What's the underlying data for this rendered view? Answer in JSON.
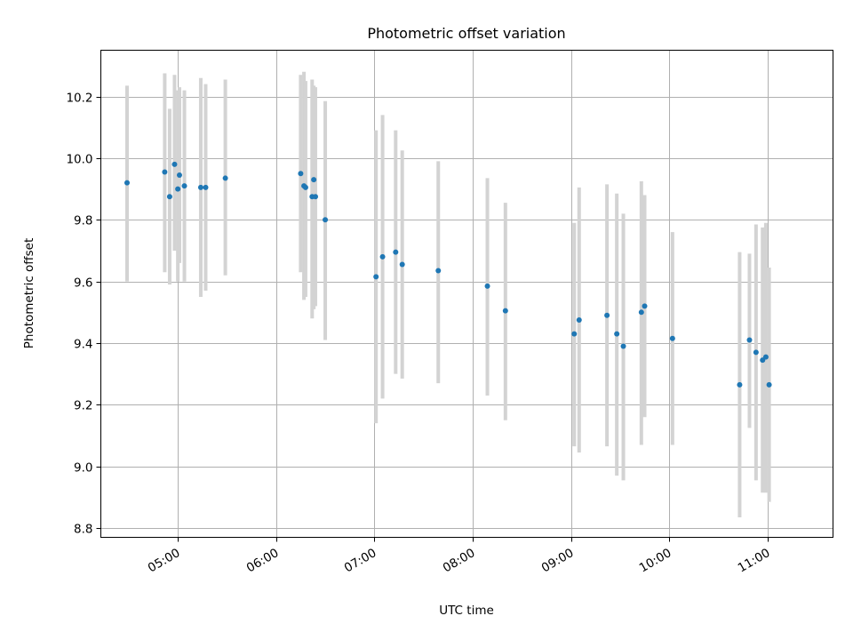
{
  "chart_data": {
    "type": "scatter",
    "title": "Photometric offset variation",
    "xlabel": "UTC time",
    "ylabel": "Photometric offset",
    "xlim": [
      "04:13",
      "11:40"
    ],
    "ylim": [
      8.77,
      10.35
    ],
    "x_ticks": [
      "05:00",
      "06:00",
      "07:00",
      "08:00",
      "09:00",
      "10:00",
      "11:00"
    ],
    "y_ticks": [
      8.8,
      9.0,
      9.2,
      9.4,
      9.6,
      9.8,
      10.0,
      10.2
    ],
    "grid": true,
    "colors": {
      "points": "#1f77b4",
      "errorbars": "#d3d3d3",
      "grid": "#b0b0b0"
    },
    "series": [
      {
        "points": [
          {
            "t": "04:29",
            "y": 9.92,
            "ylo": 9.6,
            "yhi": 10.235
          },
          {
            "t": "04:52",
            "y": 9.955,
            "ylo": 9.63,
            "yhi": 10.275
          },
          {
            "t": "04:55",
            "y": 9.875,
            "ylo": 9.59,
            "yhi": 10.16
          },
          {
            "t": "04:58",
            "y": 9.98,
            "ylo": 9.7,
            "yhi": 10.27
          },
          {
            "t": "05:00",
            "y": 9.9,
            "ylo": 9.6,
            "yhi": 10.22
          },
          {
            "t": "05:01",
            "y": 9.945,
            "ylo": 9.66,
            "yhi": 10.23
          },
          {
            "t": "05:04",
            "y": 9.91,
            "ylo": 9.6,
            "yhi": 10.22
          },
          {
            "t": "05:14",
            "y": 9.905,
            "ylo": 9.55,
            "yhi": 10.26
          },
          {
            "t": "05:17",
            "y": 9.905,
            "ylo": 9.57,
            "yhi": 10.24
          },
          {
            "t": "05:29",
            "y": 9.935,
            "ylo": 9.62,
            "yhi": 10.255
          },
          {
            "t": "06:15",
            "y": 9.95,
            "ylo": 9.63,
            "yhi": 10.27
          },
          {
            "t": "06:17",
            "y": 9.91,
            "ylo": 9.54,
            "yhi": 10.28
          },
          {
            "t": "06:18",
            "y": 9.905,
            "ylo": 9.55,
            "yhi": 10.25
          },
          {
            "t": "06:22",
            "y": 9.875,
            "ylo": 9.48,
            "yhi": 10.255
          },
          {
            "t": "06:23",
            "y": 9.93,
            "ylo": 9.51,
            "yhi": 10.235
          },
          {
            "t": "06:24",
            "y": 9.875,
            "ylo": 9.52,
            "yhi": 10.23
          },
          {
            "t": "06:30",
            "y": 9.8,
            "ylo": 9.41,
            "yhi": 10.185
          },
          {
            "t": "07:01",
            "y": 9.615,
            "ylo": 9.14,
            "yhi": 10.09
          },
          {
            "t": "07:05",
            "y": 9.68,
            "ylo": 9.22,
            "yhi": 10.14
          },
          {
            "t": "07:13",
            "y": 9.695,
            "ylo": 9.3,
            "yhi": 10.09
          },
          {
            "t": "07:17",
            "y": 9.655,
            "ylo": 9.285,
            "yhi": 10.025
          },
          {
            "t": "07:39",
            "y": 9.635,
            "ylo": 9.27,
            "yhi": 9.99
          },
          {
            "t": "08:09",
            "y": 9.585,
            "ylo": 9.23,
            "yhi": 9.935
          },
          {
            "t": "08:20",
            "y": 9.505,
            "ylo": 9.15,
            "yhi": 9.855
          },
          {
            "t": "09:02",
            "y": 9.43,
            "ylo": 9.065,
            "yhi": 9.79
          },
          {
            "t": "09:05",
            "y": 9.475,
            "ylo": 9.045,
            "yhi": 9.905
          },
          {
            "t": "09:22",
            "y": 9.49,
            "ylo": 9.065,
            "yhi": 9.915
          },
          {
            "t": "09:28",
            "y": 9.43,
            "ylo": 8.97,
            "yhi": 9.885
          },
          {
            "t": "09:32",
            "y": 9.39,
            "ylo": 8.955,
            "yhi": 9.82
          },
          {
            "t": "09:43",
            "y": 9.5,
            "ylo": 9.07,
            "yhi": 9.925
          },
          {
            "t": "09:45",
            "y": 9.52,
            "ylo": 9.16,
            "yhi": 9.88
          },
          {
            "t": "10:02",
            "y": 9.415,
            "ylo": 9.07,
            "yhi": 9.76
          },
          {
            "t": "10:43",
            "y": 9.265,
            "ylo": 8.835,
            "yhi": 9.695
          },
          {
            "t": "10:49",
            "y": 9.41,
            "ylo": 9.125,
            "yhi": 9.69
          },
          {
            "t": "10:53",
            "y": 9.37,
            "ylo": 8.955,
            "yhi": 9.785
          },
          {
            "t": "10:57",
            "y": 9.345,
            "ylo": 8.915,
            "yhi": 9.775
          },
          {
            "t": "10:59",
            "y": 9.355,
            "ylo": 8.915,
            "yhi": 9.79
          },
          {
            "t": "11:01",
            "y": 9.265,
            "ylo": 8.885,
            "yhi": 9.645
          }
        ]
      }
    ]
  }
}
